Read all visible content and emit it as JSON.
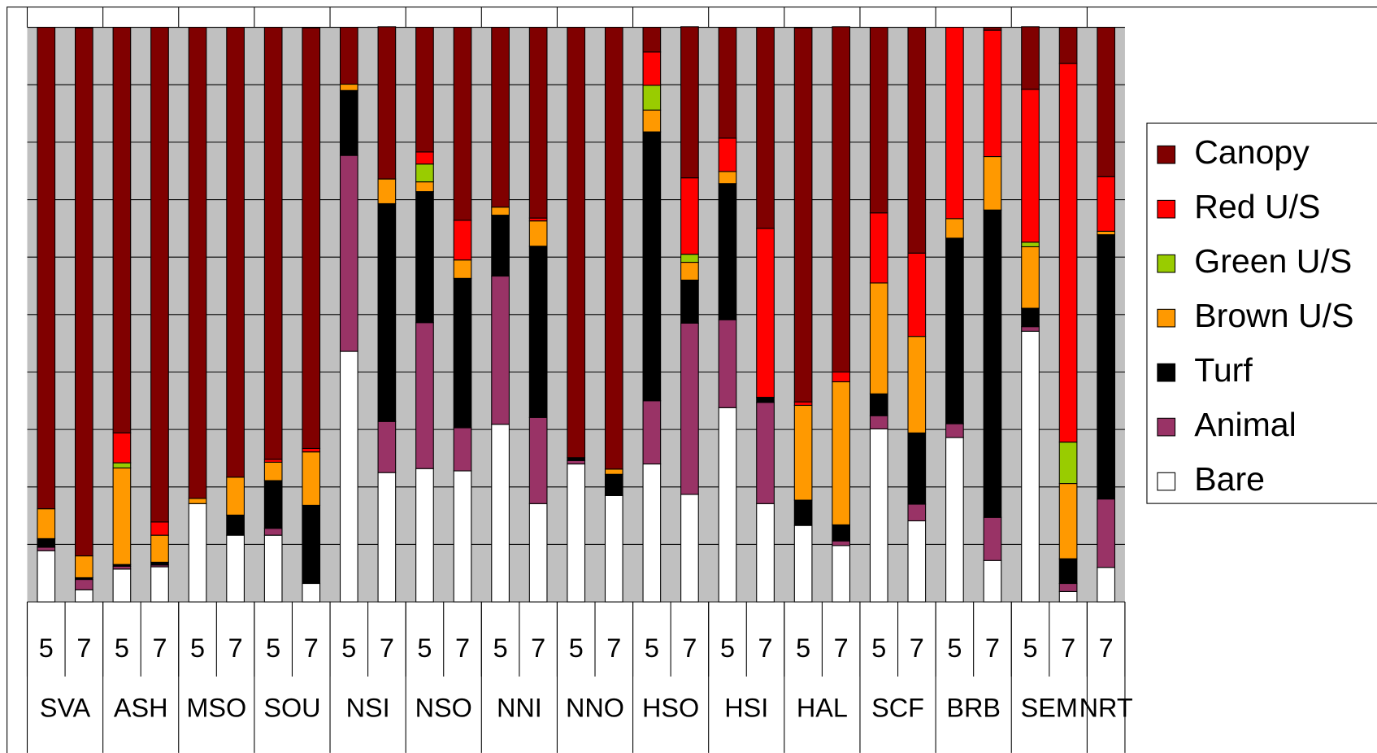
{
  "chart_data": {
    "type": "stacked_bar",
    "categories": [
      "5",
      "7",
      "5",
      "7",
      "5",
      "7",
      "5",
      "7",
      "5",
      "7",
      "5",
      "7",
      "5",
      "7",
      "5",
      "7",
      "5",
      "7",
      "5",
      "7",
      "5",
      "7",
      "5",
      "7",
      "5",
      "7",
      "5",
      "7",
      "7"
    ],
    "group_labels": [
      "SVA",
      null,
      "ASH",
      null,
      "MSO",
      null,
      "SOU",
      null,
      "NSI",
      null,
      "NSO",
      null,
      "NNI",
      null,
      "NNO",
      null,
      "HSO",
      null,
      "HSI",
      null,
      "HAL",
      null,
      "SCF",
      null,
      "BRB",
      null,
      "SEM",
      null,
      "NRT"
    ],
    "ylim": [
      0,
      100
    ],
    "yticks": [
      0,
      10,
      20,
      30,
      40,
      50,
      60,
      70,
      80,
      90,
      100
    ],
    "grid": true,
    "legend": "right",
    "series": [
      {
        "name": "Canopy",
        "color": "#800000",
        "values": [
          83.8,
          91.9,
          70.6,
          86.1,
          82.0,
          78.3,
          75.2,
          73.2,
          9.9,
          26.5,
          21.7,
          33.6,
          31.3,
          33.2,
          74.9,
          76.9,
          4.3,
          26.3,
          19.3,
          35.0,
          65.1,
          60.1,
          32.3,
          39.3,
          0,
          0.5,
          10.9,
          6.3,
          26.0
        ]
      },
      {
        "name": "Red U/S",
        "color": "#ff0000",
        "values": [
          0,
          0,
          5.2,
          2.3,
          0,
          0,
          0.5,
          0.6,
          0,
          0,
          2.1,
          6.9,
          0,
          0.5,
          0,
          0,
          5.8,
          13.3,
          5.8,
          29.4,
          0.6,
          1.7,
          12.2,
          14.5,
          33.3,
          22.0,
          26.6,
          65.9,
          9.5
        ]
      },
      {
        "name": "Green U/S",
        "color": "#99cc00",
        "values": [
          0,
          0,
          0.9,
          0,
          0,
          0,
          0,
          0,
          0,
          0,
          3.1,
          0,
          0,
          0,
          0,
          0,
          4.3,
          1.4,
          0,
          0,
          0,
          0,
          0,
          0,
          0,
          0,
          0.8,
          7.2,
          0
        ]
      },
      {
        "name": "Brown U/S",
        "color": "#ff9900",
        "values": [
          5.2,
          3.8,
          16.8,
          4.7,
          0.9,
          6.6,
          3.2,
          9.3,
          1.1,
          4.3,
          1.7,
          3.2,
          1.4,
          4.4,
          0,
          0.9,
          3.8,
          3.1,
          2.1,
          0,
          16.5,
          24.9,
          19.3,
          16.8,
          3.4,
          9.3,
          10.7,
          13.1,
          0.6
        ]
      },
      {
        "name": "Turf",
        "color": "#000000",
        "values": [
          1.5,
          0.3,
          0.3,
          0.5,
          0,
          3.5,
          8.3,
          13.6,
          11.3,
          37.9,
          22.8,
          26.0,
          10.6,
          29.8,
          0.5,
          3.7,
          46.8,
          7.5,
          23.7,
          0.9,
          4.4,
          2.8,
          3.8,
          12.4,
          32.3,
          53.5,
          3.2,
          4.3,
          46.0
        ]
      },
      {
        "name": "Animal",
        "color": "#993366",
        "values": [
          0.6,
          1.8,
          0.5,
          0.3,
          0,
          0,
          1.2,
          0,
          34.1,
          8.9,
          25.4,
          7.5,
          25.8,
          15.0,
          0.6,
          0,
          11.0,
          29.8,
          15.3,
          17.6,
          0,
          0.8,
          2.3,
          2.9,
          2.4,
          7.5,
          0.8,
          1.4,
          11.9
        ]
      },
      {
        "name": "Bare",
        "color": "#ffffff",
        "values": [
          8.9,
          2.1,
          5.7,
          6.1,
          17.1,
          11.6,
          11.6,
          3.2,
          43.6,
          22.5,
          23.2,
          22.8,
          30.9,
          17.1,
          24.0,
          18.5,
          24.0,
          18.7,
          33.8,
          17.1,
          13.3,
          9.8,
          30.1,
          14.1,
          28.6,
          7.2,
          47.1,
          1.8,
          6.0
        ]
      }
    ]
  }
}
